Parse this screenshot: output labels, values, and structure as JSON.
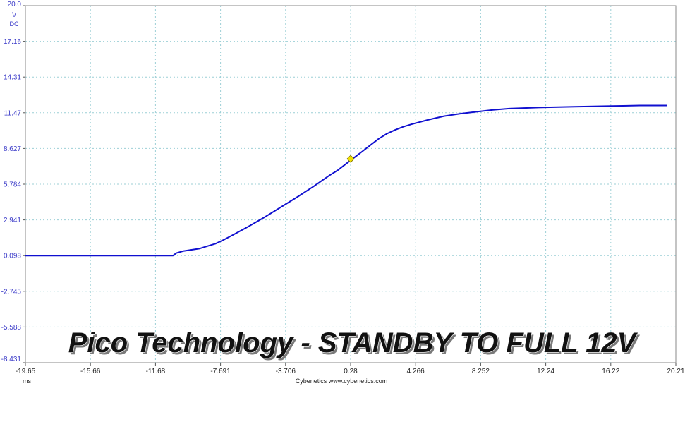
{
  "chart_data": {
    "type": "line",
    "title": "",
    "watermark": "Pico Technology - STANDBY TO FULL 12V",
    "xlabel": "ms",
    "ylabel": "V",
    "ylabel_sub": "DC",
    "footer": "Cybenetics   www.cybenetics.com",
    "xlim": [
      -19.65,
      20.21
    ],
    "ylim": [
      -8.431,
      20.0
    ],
    "x_ticks": [
      "-19.65",
      "-15.66",
      "-11.68",
      "-7.691",
      "-3.706",
      "0.28",
      "4.266",
      "8.252",
      "12.24",
      "16.22",
      "20.21"
    ],
    "y_ticks": [
      "20.0",
      "17.16",
      "14.31",
      "11.47",
      "8.627",
      "5.784",
      "2.941",
      "0.098",
      "-2.745",
      "-5.588",
      "-8.431"
    ],
    "grid": true,
    "series": [
      {
        "color": "#1010d0",
        "x": [
          -19.65,
          -15.0,
          -11.0,
          -10.6,
          -10.4,
          -10.0,
          -9.0,
          -8.5,
          -8.0,
          -7.5,
          -7.0,
          -6.0,
          -5.0,
          -4.0,
          -3.0,
          -2.0,
          -1.0,
          -0.5,
          0.0,
          0.5,
          1.0,
          1.5,
          2.0,
          2.5,
          3.0,
          3.5,
          4.0,
          5.0,
          6.0,
          7.0,
          8.0,
          9.0,
          10.0,
          12.0,
          14.0,
          16.0,
          18.0,
          19.65
        ],
        "y": [
          0.1,
          0.1,
          0.1,
          0.1,
          0.3,
          0.45,
          0.65,
          0.85,
          1.05,
          1.35,
          1.7,
          2.4,
          3.15,
          3.95,
          4.75,
          5.6,
          6.5,
          6.9,
          7.4,
          7.9,
          8.4,
          8.9,
          9.4,
          9.8,
          10.1,
          10.35,
          10.55,
          10.9,
          11.2,
          11.4,
          11.55,
          11.7,
          11.8,
          11.9,
          11.95,
          12.0,
          12.05,
          12.05
        ]
      }
    ],
    "marker": {
      "x": 0.28,
      "y": 7.8,
      "color": "#f0e000"
    }
  }
}
